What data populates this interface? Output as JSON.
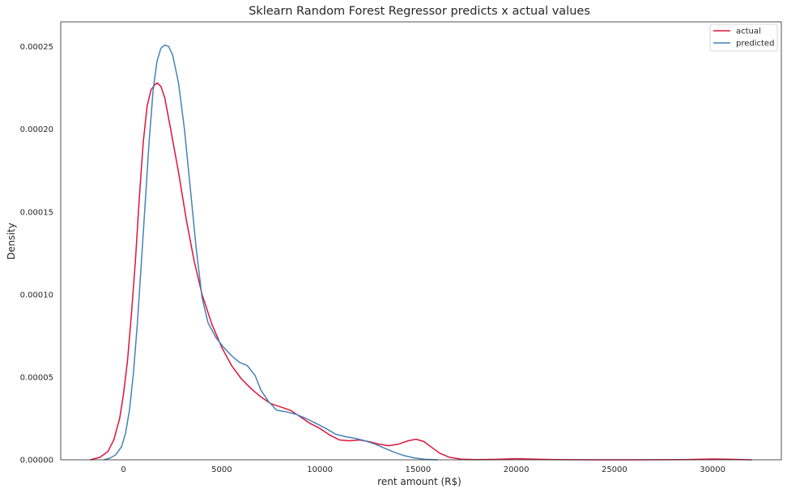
{
  "chart_data": {
    "type": "line",
    "title": "Sklearn Random Forest Regressor predicts x actual values",
    "xlabel": "rent amount (R$)",
    "ylabel": "Density",
    "xlim": [
      -3200,
      33500
    ],
    "ylim": [
      0,
      0.000265
    ],
    "xticks": [
      0,
      5000,
      10000,
      15000,
      20000,
      25000,
      30000
    ],
    "xtick_labels": [
      "0",
      "5000",
      "10000",
      "15000",
      "20000",
      "25000",
      "30000"
    ],
    "yticks": [
      0,
      5e-05,
      0.0001,
      0.00015,
      0.0002,
      0.00025
    ],
    "ytick_labels": [
      "0.00000",
      "0.00005",
      "0.00010",
      "0.00015",
      "0.00020",
      "0.00025"
    ],
    "grid": false,
    "legend_position": "top-right",
    "series": [
      {
        "name": "actual",
        "color": "#dc143c",
        "points": [
          [
            -1700,
            0
          ],
          [
            -1200,
            1.5e-06
          ],
          [
            -800,
            5e-06
          ],
          [
            -500,
            1.2e-05
          ],
          [
            -200,
            2.5e-05
          ],
          [
            0,
            4e-05
          ],
          [
            200,
            6e-05
          ],
          [
            400,
            8.8e-05
          ],
          [
            600,
            0.00012
          ],
          [
            800,
            0.000158
          ],
          [
            1000,
            0.000192
          ],
          [
            1200,
            0.000214
          ],
          [
            1400,
            0.000224
          ],
          [
            1600,
            0.000227
          ],
          [
            1700,
            0.000228
          ],
          [
            1900,
            0.000226
          ],
          [
            2100,
            0.000219
          ],
          [
            2400,
            0.0002
          ],
          [
            2800,
            0.000174
          ],
          [
            3200,
            0.000145
          ],
          [
            3600,
            0.00012
          ],
          [
            4000,
            0.0001
          ],
          [
            4500,
            8.2e-05
          ],
          [
            5000,
            6.8e-05
          ],
          [
            5500,
            5.7e-05
          ],
          [
            6000,
            4.9e-05
          ],
          [
            6500,
            4.3e-05
          ],
          [
            7000,
            3.8e-05
          ],
          [
            7500,
            3.4e-05
          ],
          [
            8000,
            3.2e-05
          ],
          [
            8500,
            3e-05
          ],
          [
            9000,
            2.6e-05
          ],
          [
            9500,
            2.2e-05
          ],
          [
            10000,
            1.9e-05
          ],
          [
            10500,
            1.5e-05
          ],
          [
            11000,
            1.2e-05
          ],
          [
            11500,
            1.15e-05
          ],
          [
            12000,
            1.2e-05
          ],
          [
            12500,
            1.1e-05
          ],
          [
            13000,
            9.5e-06
          ],
          [
            13500,
            8.5e-06
          ],
          [
            14000,
            9.5e-06
          ],
          [
            14500,
            1.15e-05
          ],
          [
            14900,
            1.25e-05
          ],
          [
            15300,
            1.1e-05
          ],
          [
            15700,
            7.5e-06
          ],
          [
            16100,
            4e-06
          ],
          [
            16600,
            1.5e-06
          ],
          [
            17200,
            4e-07
          ],
          [
            18000,
            1e-07
          ],
          [
            19000,
            3e-07
          ],
          [
            20000,
            7e-07
          ],
          [
            21000,
            4e-07
          ],
          [
            22000,
            1e-07
          ],
          [
            24000,
            0
          ],
          [
            26000,
            0
          ],
          [
            28500,
            1e-07
          ],
          [
            30000,
            5e-07
          ],
          [
            31000,
            3e-07
          ],
          [
            32000,
            0
          ]
        ]
      },
      {
        "name": "predicted",
        "color": "#4682b4",
        "points": [
          [
            -1000,
            0
          ],
          [
            -700,
            1e-06
          ],
          [
            -400,
            3e-06
          ],
          [
            -100,
            8e-06
          ],
          [
            100,
            1.6e-05
          ],
          [
            300,
            3e-05
          ],
          [
            500,
            5.2e-05
          ],
          [
            700,
            8.2e-05
          ],
          [
            900,
            0.000118
          ],
          [
            1100,
            0.000155
          ],
          [
            1300,
            0.000192
          ],
          [
            1500,
            0.000223
          ],
          [
            1700,
            0.000241
          ],
          [
            1900,
            0.000249
          ],
          [
            2100,
            0.000251
          ],
          [
            2300,
            0.00025
          ],
          [
            2500,
            0.000245
          ],
          [
            2800,
            0.000228
          ],
          [
            3100,
            0.0002
          ],
          [
            3400,
            0.000164
          ],
          [
            3700,
            0.000128
          ],
          [
            4000,
            9.8e-05
          ],
          [
            4300,
            8.3e-05
          ],
          [
            4700,
            7.4e-05
          ],
          [
            5100,
            6.8e-05
          ],
          [
            5500,
            6.3e-05
          ],
          [
            5900,
            5.9e-05
          ],
          [
            6300,
            5.7e-05
          ],
          [
            6700,
            5.1e-05
          ],
          [
            7000,
            4.2e-05
          ],
          [
            7400,
            3.5e-05
          ],
          [
            7800,
            3e-05
          ],
          [
            8300,
            2.9e-05
          ],
          [
            8800,
            2.75e-05
          ],
          [
            9300,
            2.5e-05
          ],
          [
            9800,
            2.2e-05
          ],
          [
            10300,
            1.9e-05
          ],
          [
            10800,
            1.55e-05
          ],
          [
            11300,
            1.4e-05
          ],
          [
            11800,
            1.3e-05
          ],
          [
            12300,
            1.15e-05
          ],
          [
            12800,
            9.5e-06
          ],
          [
            13300,
            7e-06
          ],
          [
            13800,
            4.5e-06
          ],
          [
            14300,
            2.5e-06
          ],
          [
            14800,
            1.2e-06
          ],
          [
            15300,
            4e-07
          ],
          [
            16000,
            0
          ]
        ]
      }
    ]
  }
}
